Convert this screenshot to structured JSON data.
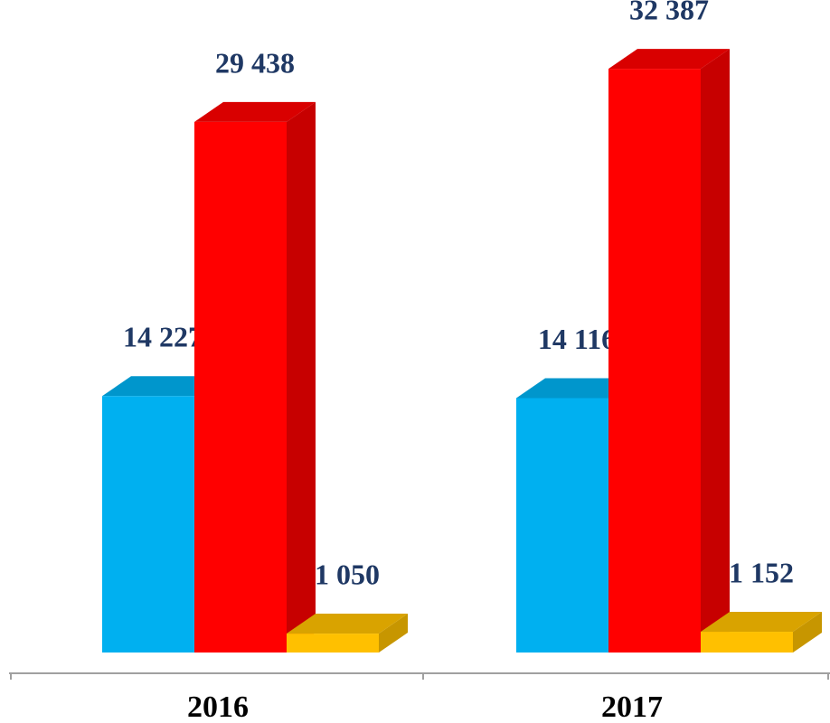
{
  "chart_data": {
    "type": "bar3d",
    "categories": [
      "2016",
      "2017"
    ],
    "series": [
      {
        "color": "#00b0f0",
        "values": [
          14227,
          14116
        ],
        "value_labels": [
          "14 227",
          "14 116"
        ]
      },
      {
        "color": "#ff0000",
        "values": [
          29438,
          32387
        ],
        "value_labels": [
          "29 438",
          "32 387"
        ]
      },
      {
        "color": "#ffc000",
        "values": [
          1050,
          1152
        ],
        "value_labels": [
          "1 050",
          "1 152"
        ]
      }
    ],
    "ylim": [
      0,
      35000
    ]
  }
}
